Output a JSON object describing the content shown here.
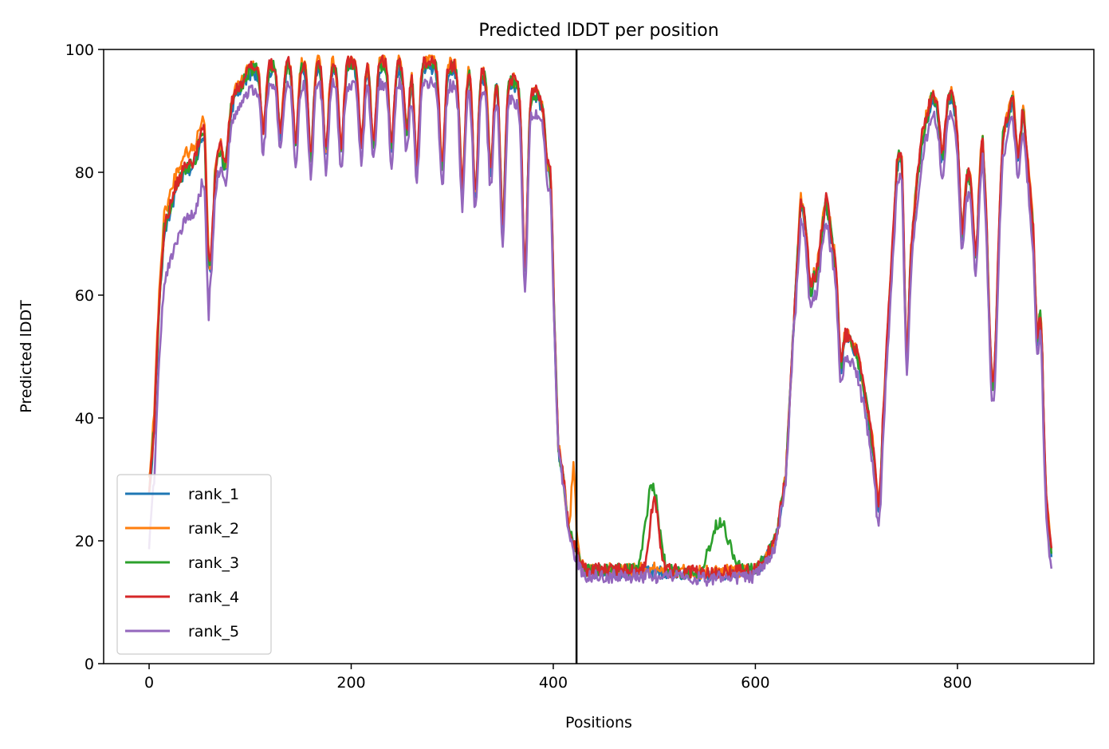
{
  "chart_data": {
    "type": "line",
    "title": "Predicted lDDT per position",
    "xlabel": "Positions",
    "ylabel": "Predicted lDDT",
    "xlim": [
      -45,
      935
    ],
    "ylim": [
      0,
      100
    ],
    "xticks": [
      0,
      200,
      400,
      600,
      800
    ],
    "yticks": [
      0,
      20,
      40,
      60,
      80,
      100
    ],
    "vline": 423,
    "legend_position": "lower-left",
    "series": [
      {
        "name": "rank_1",
        "color": "#1f77b4"
      },
      {
        "name": "rank_2",
        "color": "#ff7f0e"
      },
      {
        "name": "rank_3",
        "color": "#2ca02c"
      },
      {
        "name": "rank_4",
        "color": "#d62728"
      },
      {
        "name": "rank_5",
        "color": "#9467bd"
      }
    ],
    "base_profile": [
      [
        0,
        27
      ],
      [
        5,
        38
      ],
      [
        10,
        58
      ],
      [
        15,
        70
      ],
      [
        25,
        76
      ],
      [
        35,
        80
      ],
      [
        45,
        81
      ],
      [
        55,
        88
      ],
      [
        60,
        70
      ],
      [
        65,
        80
      ],
      [
        75,
        87
      ],
      [
        85,
        92
      ],
      [
        100,
        96
      ],
      [
        130,
        97
      ],
      [
        200,
        97
      ],
      [
        280,
        97
      ],
      [
        320,
        96
      ],
      [
        350,
        95
      ],
      [
        370,
        93
      ],
      [
        385,
        92
      ],
      [
        395,
        88
      ],
      [
        400,
        60
      ],
      [
        405,
        35
      ],
      [
        410,
        30
      ],
      [
        415,
        22
      ],
      [
        420,
        19
      ],
      [
        425,
        17
      ],
      [
        430,
        15
      ],
      [
        450,
        15
      ],
      [
        500,
        15
      ],
      [
        550,
        14.5
      ],
      [
        600,
        15
      ],
      [
        610,
        17
      ],
      [
        620,
        20
      ],
      [
        630,
        30
      ],
      [
        638,
        55
      ],
      [
        645,
        75
      ],
      [
        652,
        70
      ],
      [
        660,
        62
      ],
      [
        670,
        75
      ],
      [
        680,
        64
      ],
      [
        690,
        53
      ],
      [
        700,
        50
      ],
      [
        710,
        42
      ],
      [
        715,
        36
      ],
      [
        720,
        33
      ],
      [
        728,
        45
      ],
      [
        735,
        65
      ],
      [
        740,
        80
      ],
      [
        745,
        85
      ],
      [
        755,
        70
      ],
      [
        765,
        85
      ],
      [
        775,
        92
      ],
      [
        785,
        90
      ],
      [
        795,
        92
      ],
      [
        805,
        82
      ],
      [
        815,
        78
      ],
      [
        825,
        85
      ],
      [
        832,
        60
      ],
      [
        837,
        55
      ],
      [
        845,
        85
      ],
      [
        855,
        92
      ],
      [
        865,
        90
      ],
      [
        875,
        70
      ],
      [
        880,
        45
      ],
      [
        885,
        30
      ],
      [
        890,
        22
      ],
      [
        893,
        18
      ]
    ],
    "dips": [
      [
        60,
        64
      ],
      [
        75,
        80
      ],
      [
        113,
        86
      ],
      [
        130,
        86
      ],
      [
        145,
        84
      ],
      [
        160,
        82
      ],
      [
        175,
        83
      ],
      [
        190,
        83
      ],
      [
        210,
        84
      ],
      [
        222,
        84
      ],
      [
        240,
        84
      ],
      [
        255,
        86
      ],
      [
        265,
        81
      ],
      [
        290,
        80
      ],
      [
        310,
        77
      ],
      [
        323,
        76
      ],
      [
        338,
        80
      ],
      [
        350,
        71
      ],
      [
        372,
        63
      ],
      [
        395,
        80
      ],
      [
        655,
        60
      ],
      [
        685,
        48
      ],
      [
        722,
        25
      ],
      [
        750,
        50
      ],
      [
        785,
        82
      ],
      [
        805,
        70
      ],
      [
        818,
        66
      ],
      [
        835,
        45
      ],
      [
        860,
        82
      ],
      [
        882,
        56
      ]
    ],
    "bumps": {
      "rank_3": [
        [
          498,
          29,
          12
        ],
        [
          565,
          23,
          18
        ]
      ],
      "rank_4": [
        [
          500,
          26,
          9
        ]
      ],
      "rank_2": [
        [
          420,
          32,
          4
        ]
      ]
    }
  }
}
